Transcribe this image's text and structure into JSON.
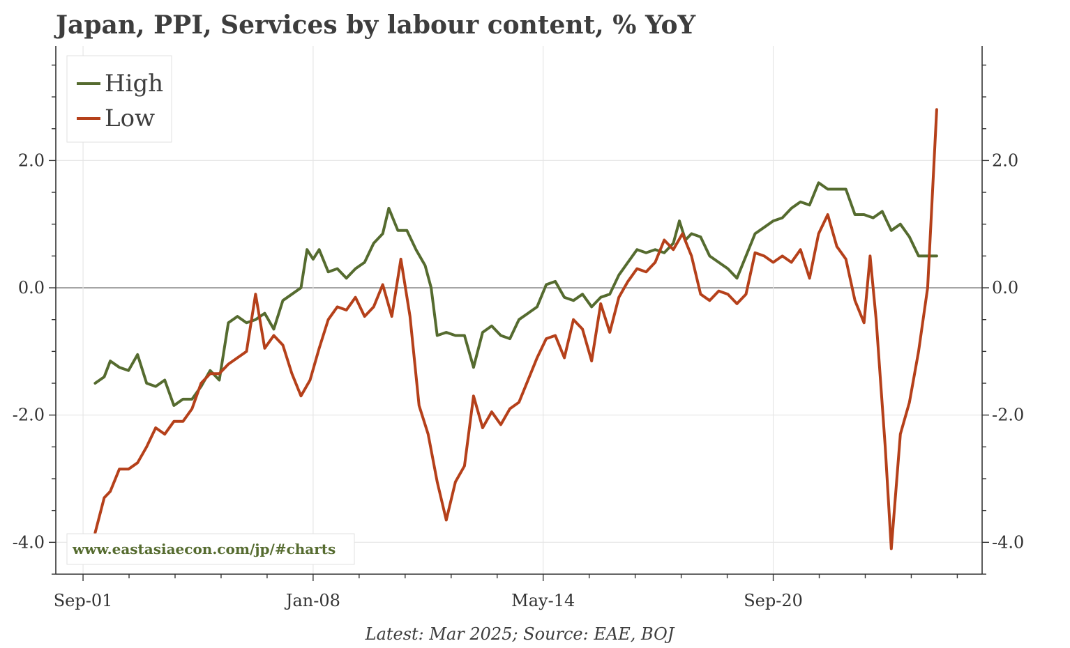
{
  "chart_data": {
    "type": "line",
    "title": "Japan, PPI, Services by labour content, % YoY",
    "footer": "Latest: Mar 2025; Source: EAE, BOJ",
    "watermark": "www.eastasiaecon.com/jp/#charts",
    "x_tick_labels": [
      "Sep-01",
      "Jan-08",
      "May-14",
      "Sep-20"
    ],
    "y_tick_labels": [
      "2.0",
      "0.0",
      "-2.0",
      "-4.0"
    ],
    "y_tick_values": [
      2.0,
      0.0,
      -2.0,
      -4.0
    ],
    "ylim": [
      -4.5,
      3.8
    ],
    "xlim": [
      "2000-12",
      "2026-06"
    ],
    "grid": true,
    "legend_position": "top-left",
    "series": [
      {
        "name": "High",
        "color": "#556b2f",
        "points": [
          [
            "2002-01",
            -1.5
          ],
          [
            "2002-04",
            -1.4
          ],
          [
            "2002-06",
            -1.15
          ],
          [
            "2002-09",
            -1.25
          ],
          [
            "2002-12",
            -1.3
          ],
          [
            "2003-03",
            -1.05
          ],
          [
            "2003-06",
            -1.5
          ],
          [
            "2003-09",
            -1.55
          ],
          [
            "2003-12",
            -1.45
          ],
          [
            "2004-03",
            -1.85
          ],
          [
            "2004-06",
            -1.75
          ],
          [
            "2004-09",
            -1.75
          ],
          [
            "2004-12",
            -1.55
          ],
          [
            "2005-03",
            -1.3
          ],
          [
            "2005-06",
            -1.45
          ],
          [
            "2005-09",
            -0.55
          ],
          [
            "2005-12",
            -0.45
          ],
          [
            "2006-03",
            -0.55
          ],
          [
            "2006-06",
            -0.5
          ],
          [
            "2006-09",
            -0.4
          ],
          [
            "2006-12",
            -0.65
          ],
          [
            "2007-03",
            -0.2
          ],
          [
            "2007-06",
            -0.1
          ],
          [
            "2007-09",
            0.0
          ],
          [
            "2007-11",
            0.6
          ],
          [
            "2008-01",
            0.45
          ],
          [
            "2008-03",
            0.6
          ],
          [
            "2008-06",
            0.25
          ],
          [
            "2008-09",
            0.3
          ],
          [
            "2008-12",
            0.15
          ],
          [
            "2009-03",
            0.3
          ],
          [
            "2009-06",
            0.4
          ],
          [
            "2009-09",
            0.7
          ],
          [
            "2009-12",
            0.85
          ],
          [
            "2010-02",
            1.25
          ],
          [
            "2010-05",
            0.9
          ],
          [
            "2010-08",
            0.9
          ],
          [
            "2010-11",
            0.6
          ],
          [
            "2011-02",
            0.35
          ],
          [
            "2011-04",
            0.0
          ],
          [
            "2011-06",
            -0.75
          ],
          [
            "2011-09",
            -0.7
          ],
          [
            "2011-12",
            -0.75
          ],
          [
            "2012-03",
            -0.75
          ],
          [
            "2012-06",
            -1.25
          ],
          [
            "2012-09",
            -0.7
          ],
          [
            "2012-12",
            -0.6
          ],
          [
            "2013-03",
            -0.75
          ],
          [
            "2013-06",
            -0.8
          ],
          [
            "2013-09",
            -0.5
          ],
          [
            "2013-12",
            -0.4
          ],
          [
            "2014-03",
            -0.3
          ],
          [
            "2014-06",
            0.05
          ],
          [
            "2014-09",
            0.1
          ],
          [
            "2014-12",
            -0.15
          ],
          [
            "2015-03",
            -0.2
          ],
          [
            "2015-06",
            -0.1
          ],
          [
            "2015-09",
            -0.3
          ],
          [
            "2015-12",
            -0.15
          ],
          [
            "2016-03",
            -0.1
          ],
          [
            "2016-06",
            0.2
          ],
          [
            "2016-09",
            0.4
          ],
          [
            "2016-12",
            0.6
          ],
          [
            "2017-03",
            0.55
          ],
          [
            "2017-06",
            0.6
          ],
          [
            "2017-09",
            0.55
          ],
          [
            "2017-12",
            0.7
          ],
          [
            "2018-02",
            1.05
          ],
          [
            "2018-04",
            0.75
          ],
          [
            "2018-06",
            0.85
          ],
          [
            "2018-09",
            0.8
          ],
          [
            "2018-12",
            0.5
          ],
          [
            "2019-03",
            0.4
          ],
          [
            "2019-06",
            0.3
          ],
          [
            "2019-09",
            0.15
          ],
          [
            "2019-12",
            0.5
          ],
          [
            "2020-03",
            0.85
          ],
          [
            "2020-06",
            0.95
          ],
          [
            "2020-09",
            1.05
          ],
          [
            "2020-12",
            1.1
          ],
          [
            "2021-03",
            1.25
          ],
          [
            "2021-06",
            1.35
          ],
          [
            "2021-09",
            1.3
          ],
          [
            "2021-12",
            1.65
          ],
          [
            "2022-03",
            1.55
          ],
          [
            "2022-06",
            1.55
          ],
          [
            "2022-09",
            1.55
          ],
          [
            "2022-12",
            1.15
          ],
          [
            "2023-03",
            1.15
          ],
          [
            "2023-06",
            1.1
          ],
          [
            "2023-09",
            1.2
          ],
          [
            "2023-12",
            0.9
          ],
          [
            "2024-03",
            1.0
          ],
          [
            "2024-06",
            0.8
          ],
          [
            "2024-09",
            0.5
          ],
          [
            "2024-12",
            0.5
          ],
          [
            "2025-03",
            0.5
          ]
        ]
      },
      {
        "name": "Low",
        "color": "#b5401a",
        "points": [
          [
            "2002-01",
            -3.85
          ],
          [
            "2002-04",
            -3.3
          ],
          [
            "2002-06",
            -3.2
          ],
          [
            "2002-09",
            -2.85
          ],
          [
            "2002-12",
            -2.85
          ],
          [
            "2003-03",
            -2.75
          ],
          [
            "2003-06",
            -2.5
          ],
          [
            "2003-09",
            -2.2
          ],
          [
            "2003-12",
            -2.3
          ],
          [
            "2004-03",
            -2.1
          ],
          [
            "2004-06",
            -2.1
          ],
          [
            "2004-09",
            -1.9
          ],
          [
            "2004-12",
            -1.5
          ],
          [
            "2005-03",
            -1.35
          ],
          [
            "2005-06",
            -1.35
          ],
          [
            "2005-09",
            -1.2
          ],
          [
            "2005-12",
            -1.1
          ],
          [
            "2006-03",
            -1.0
          ],
          [
            "2006-06",
            -0.1
          ],
          [
            "2006-09",
            -0.95
          ],
          [
            "2006-12",
            -0.75
          ],
          [
            "2007-03",
            -0.9
          ],
          [
            "2007-06",
            -1.35
          ],
          [
            "2007-09",
            -1.7
          ],
          [
            "2007-12",
            -1.45
          ],
          [
            "2008-03",
            -0.95
          ],
          [
            "2008-06",
            -0.5
          ],
          [
            "2008-09",
            -0.3
          ],
          [
            "2008-12",
            -0.35
          ],
          [
            "2009-03",
            -0.15
          ],
          [
            "2009-06",
            -0.45
          ],
          [
            "2009-09",
            -0.3
          ],
          [
            "2009-12",
            0.05
          ],
          [
            "2010-03",
            -0.45
          ],
          [
            "2010-06",
            0.45
          ],
          [
            "2010-09",
            -0.45
          ],
          [
            "2010-12",
            -1.85
          ],
          [
            "2011-03",
            -2.3
          ],
          [
            "2011-06",
            -3.05
          ],
          [
            "2011-09",
            -3.65
          ],
          [
            "2011-12",
            -3.05
          ],
          [
            "2012-03",
            -2.8
          ],
          [
            "2012-06",
            -1.7
          ],
          [
            "2012-09",
            -2.2
          ],
          [
            "2012-12",
            -1.95
          ],
          [
            "2013-03",
            -2.15
          ],
          [
            "2013-06",
            -1.9
          ],
          [
            "2013-09",
            -1.8
          ],
          [
            "2013-12",
            -1.45
          ],
          [
            "2014-03",
            -1.1
          ],
          [
            "2014-06",
            -0.8
          ],
          [
            "2014-09",
            -0.75
          ],
          [
            "2014-12",
            -1.1
          ],
          [
            "2015-03",
            -0.5
          ],
          [
            "2015-06",
            -0.65
          ],
          [
            "2015-09",
            -1.15
          ],
          [
            "2015-12",
            -0.25
          ],
          [
            "2016-03",
            -0.7
          ],
          [
            "2016-06",
            -0.15
          ],
          [
            "2016-09",
            0.1
          ],
          [
            "2016-12",
            0.3
          ],
          [
            "2017-03",
            0.25
          ],
          [
            "2017-06",
            0.4
          ],
          [
            "2017-09",
            0.75
          ],
          [
            "2017-12",
            0.6
          ],
          [
            "2018-03",
            0.85
          ],
          [
            "2018-06",
            0.5
          ],
          [
            "2018-09",
            -0.1
          ],
          [
            "2018-12",
            -0.2
          ],
          [
            "2019-03",
            -0.05
          ],
          [
            "2019-06",
            -0.1
          ],
          [
            "2019-09",
            -0.25
          ],
          [
            "2019-12",
            -0.1
          ],
          [
            "2020-03",
            0.55
          ],
          [
            "2020-06",
            0.5
          ],
          [
            "2020-09",
            0.4
          ],
          [
            "2020-12",
            0.5
          ],
          [
            "2021-03",
            0.4
          ],
          [
            "2021-06",
            0.6
          ],
          [
            "2021-09",
            0.15
          ],
          [
            "2021-12",
            0.85
          ],
          [
            "2022-03",
            1.15
          ],
          [
            "2022-06",
            0.65
          ],
          [
            "2022-09",
            0.45
          ],
          [
            "2022-12",
            -0.2
          ],
          [
            "2023-03",
            -0.55
          ],
          [
            "2023-05",
            0.5
          ],
          [
            "2023-07",
            -0.5
          ],
          [
            "2023-10",
            -2.5
          ],
          [
            "2023-12",
            -4.1
          ],
          [
            "2024-03",
            -2.3
          ],
          [
            "2024-06",
            -1.8
          ],
          [
            "2024-09",
            -1.0
          ],
          [
            "2024-12",
            0.0
          ],
          [
            "2025-03",
            2.8
          ]
        ]
      }
    ]
  }
}
